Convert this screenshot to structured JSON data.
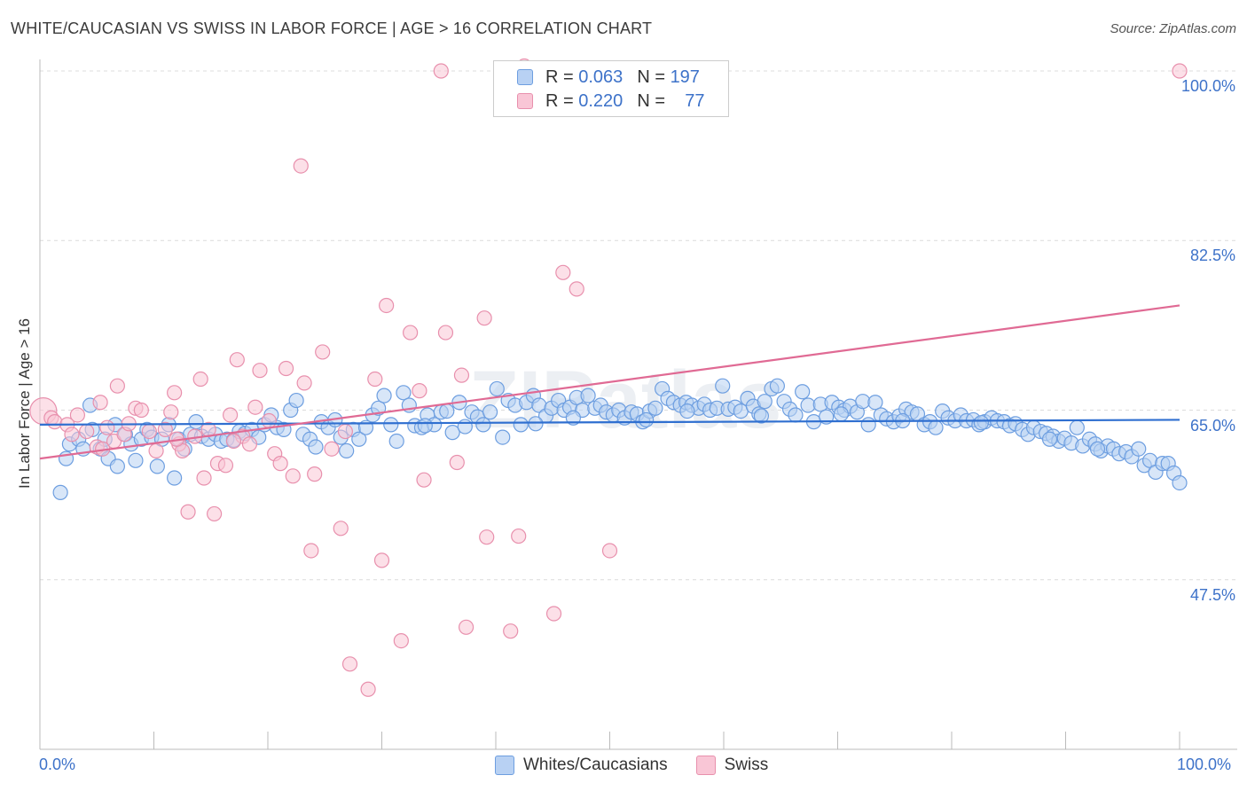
{
  "title": "WHITE/CAUCASIAN VS SWISS IN LABOR FORCE | AGE > 16 CORRELATION CHART",
  "source": "Source: ZipAtlas.com",
  "watermark": "ZIPatlas",
  "legend": {
    "rows": [
      {
        "r_label": "R =",
        "r_value": "0.063",
        "n_label": "N =",
        "n_value": "197"
      },
      {
        "r_label": "R =",
        "r_value": "0.220",
        "n_label": "N =",
        "n_value": "77"
      }
    ],
    "bottom": [
      "Whites/Caucasians",
      "Swiss"
    ]
  },
  "colors": {
    "blue_fill": "#b8d1f3",
    "blue_stroke": "#6d9ee0",
    "blue_line": "#2f6fd0",
    "pink_fill": "#f9c6d6",
    "pink_stroke": "#e890ad",
    "pink_line": "#e06a94",
    "accent_text": "#3d72c9"
  },
  "chart_data": {
    "type": "scatter",
    "title": "WHITE/CAUCASIAN VS SWISS IN LABOR FORCE | AGE > 16 CORRELATION CHART",
    "xlabel": "",
    "ylabel": "In Labor Force | Age > 16",
    "xlim": [
      0,
      100
    ],
    "ylim": [
      30,
      100
    ],
    "x_tick_labels": [
      "0.0%",
      "100.0%"
    ],
    "y_ticks": [
      47.5,
      65.0,
      82.5,
      100.0
    ],
    "y_tick_labels": [
      "47.5%",
      "65.0%",
      "82.5%",
      "100.0%"
    ],
    "grid": true,
    "legend_position": "top-center",
    "series": [
      {
        "name": "Whites/Caucasians",
        "trend": {
          "x": [
            0,
            100
          ],
          "y": [
            63.5,
            64.0
          ]
        },
        "points": [
          [
            1.8,
            56.5
          ],
          [
            2.3,
            60.0
          ],
          [
            2.6,
            61.5
          ],
          [
            3.4,
            62.0
          ],
          [
            3.8,
            61.0
          ],
          [
            4.4,
            65.5
          ],
          [
            4.6,
            63.0
          ],
          [
            5.3,
            61.0
          ],
          [
            5.7,
            62.0
          ],
          [
            6.0,
            60.0
          ],
          [
            6.6,
            63.5
          ],
          [
            6.8,
            59.2
          ],
          [
            7.5,
            62.5
          ],
          [
            8.0,
            61.5
          ],
          [
            8.4,
            59.8
          ],
          [
            8.9,
            62.0
          ],
          [
            9.4,
            63.0
          ],
          [
            9.8,
            62.2
          ],
          [
            10.3,
            59.2
          ],
          [
            10.7,
            62.0
          ],
          [
            11.3,
            63.5
          ],
          [
            11.8,
            58.0
          ],
          [
            12.2,
            62.0
          ],
          [
            12.7,
            61.0
          ],
          [
            13.2,
            62.5
          ],
          [
            13.7,
            63.8
          ],
          [
            14.2,
            62.3
          ],
          [
            14.8,
            62.0
          ],
          [
            15.4,
            62.5
          ],
          [
            15.9,
            61.8
          ],
          [
            16.4,
            62.0
          ],
          [
            17.0,
            61.9
          ],
          [
            17.5,
            62.8
          ],
          [
            18.0,
            62.6
          ],
          [
            18.6,
            63.0
          ],
          [
            19.2,
            62.2
          ],
          [
            19.7,
            63.5
          ],
          [
            20.3,
            64.5
          ],
          [
            20.8,
            63.2
          ],
          [
            21.4,
            63.0
          ],
          [
            22.0,
            65.0
          ],
          [
            22.5,
            66.0
          ],
          [
            23.1,
            62.5
          ],
          [
            23.7,
            62.0
          ],
          [
            24.2,
            61.2
          ],
          [
            24.7,
            63.8
          ],
          [
            25.3,
            63.2
          ],
          [
            25.9,
            64.0
          ],
          [
            26.4,
            62.2
          ],
          [
            26.9,
            60.8
          ],
          [
            27.5,
            63.0
          ],
          [
            28.0,
            62.0
          ],
          [
            28.6,
            63.2
          ],
          [
            29.2,
            64.5
          ],
          [
            29.7,
            65.2
          ],
          [
            30.2,
            66.5
          ],
          [
            30.8,
            63.5
          ],
          [
            31.3,
            61.8
          ],
          [
            31.9,
            66.8
          ],
          [
            32.4,
            65.5
          ],
          [
            32.9,
            63.4
          ],
          [
            33.5,
            63.2
          ],
          [
            34.0,
            64.5
          ],
          [
            34.6,
            63.5
          ],
          [
            35.2,
            64.8
          ],
          [
            35.7,
            64.9
          ],
          [
            36.2,
            62.7
          ],
          [
            36.8,
            65.8
          ],
          [
            37.3,
            63.3
          ],
          [
            37.9,
            64.8
          ],
          [
            38.4,
            64.3
          ],
          [
            38.9,
            63.5
          ],
          [
            39.5,
            64.8
          ],
          [
            40.1,
            67.2
          ],
          [
            40.6,
            62.2
          ],
          [
            41.1,
            66.0
          ],
          [
            41.7,
            65.5
          ],
          [
            42.2,
            63.5
          ],
          [
            42.7,
            65.8
          ],
          [
            43.3,
            66.5
          ],
          [
            43.8,
            65.5
          ],
          [
            44.4,
            64.4
          ],
          [
            44.9,
            65.2
          ],
          [
            45.5,
            66.0
          ],
          [
            46.0,
            65.0
          ],
          [
            46.5,
            65.3
          ],
          [
            47.1,
            66.3
          ],
          [
            47.6,
            65.0
          ],
          [
            48.1,
            66.5
          ],
          [
            48.7,
            65.2
          ],
          [
            49.2,
            65.5
          ],
          [
            49.7,
            64.8
          ],
          [
            50.3,
            64.5
          ],
          [
            50.8,
            65.0
          ],
          [
            51.3,
            64.2
          ],
          [
            51.9,
            64.8
          ],
          [
            52.4,
            64.6
          ],
          [
            52.9,
            63.8
          ],
          [
            53.5,
            64.9
          ],
          [
            54.0,
            65.2
          ],
          [
            54.6,
            67.2
          ],
          [
            55.1,
            66.2
          ],
          [
            55.6,
            65.8
          ],
          [
            56.2,
            65.5
          ],
          [
            56.7,
            65.8
          ],
          [
            57.2,
            65.5
          ],
          [
            57.8,
            65.2
          ],
          [
            58.3,
            65.6
          ],
          [
            58.8,
            65.0
          ],
          [
            59.4,
            65.2
          ],
          [
            59.9,
            67.5
          ],
          [
            60.4,
            65.1
          ],
          [
            61.0,
            65.3
          ],
          [
            61.5,
            64.9
          ],
          [
            62.1,
            66.2
          ],
          [
            62.6,
            65.4
          ],
          [
            63.1,
            64.6
          ],
          [
            63.6,
            65.9
          ],
          [
            64.2,
            67.2
          ],
          [
            64.7,
            67.5
          ],
          [
            65.3,
            65.9
          ],
          [
            65.8,
            65.1
          ],
          [
            66.3,
            64.5
          ],
          [
            66.9,
            66.9
          ],
          [
            67.4,
            65.5
          ],
          [
            67.9,
            63.8
          ],
          [
            68.5,
            65.6
          ],
          [
            69.0,
            64.3
          ],
          [
            69.5,
            65.8
          ],
          [
            70.1,
            65.3
          ],
          [
            70.6,
            65.0
          ],
          [
            71.1,
            65.4
          ],
          [
            71.7,
            64.8
          ],
          [
            72.2,
            65.9
          ],
          [
            72.7,
            63.5
          ],
          [
            73.3,
            65.8
          ],
          [
            73.8,
            64.5
          ],
          [
            74.3,
            64.1
          ],
          [
            74.9,
            63.8
          ],
          [
            75.4,
            64.4
          ],
          [
            76.0,
            65.1
          ],
          [
            76.5,
            64.8
          ],
          [
            77.0,
            64.6
          ],
          [
            77.6,
            63.5
          ],
          [
            78.1,
            63.8
          ],
          [
            78.6,
            63.2
          ],
          [
            79.2,
            64.9
          ],
          [
            79.7,
            64.2
          ],
          [
            80.3,
            63.9
          ],
          [
            80.8,
            64.5
          ],
          [
            81.3,
            63.9
          ],
          [
            81.9,
            64.0
          ],
          [
            82.4,
            63.5
          ],
          [
            82.9,
            63.8
          ],
          [
            83.5,
            64.2
          ],
          [
            84.0,
            63.9
          ],
          [
            84.6,
            63.8
          ],
          [
            85.1,
            63.4
          ],
          [
            85.6,
            63.6
          ],
          [
            86.2,
            63.0
          ],
          [
            86.7,
            62.5
          ],
          [
            87.2,
            63.2
          ],
          [
            87.8,
            62.8
          ],
          [
            88.3,
            62.6
          ],
          [
            88.9,
            62.3
          ],
          [
            89.4,
            61.8
          ],
          [
            89.9,
            62.1
          ],
          [
            90.5,
            61.6
          ],
          [
            91.0,
            63.2
          ],
          [
            91.5,
            61.3
          ],
          [
            92.1,
            62.0
          ],
          [
            92.6,
            61.5
          ],
          [
            93.1,
            60.8
          ],
          [
            93.7,
            61.3
          ],
          [
            94.2,
            61.0
          ],
          [
            94.7,
            60.5
          ],
          [
            95.3,
            60.7
          ],
          [
            95.8,
            60.2
          ],
          [
            96.4,
            61.0
          ],
          [
            96.9,
            59.3
          ],
          [
            97.4,
            59.8
          ],
          [
            97.9,
            58.6
          ],
          [
            98.5,
            59.5
          ],
          [
            99.0,
            59.5
          ],
          [
            99.5,
            58.5
          ],
          [
            100.0,
            57.5
          ],
          [
            43.5,
            63.6
          ],
          [
            46.8,
            64.2
          ],
          [
            53.2,
            64.0
          ],
          [
            56.8,
            64.9
          ],
          [
            63.3,
            64.4
          ],
          [
            70.3,
            64.6
          ],
          [
            75.7,
            63.9
          ],
          [
            82.6,
            63.7
          ],
          [
            88.6,
            62.0
          ],
          [
            92.8,
            61.0
          ],
          [
            33.8,
            63.4
          ]
        ]
      },
      {
        "name": "Swiss",
        "trend": {
          "x": [
            0,
            100
          ],
          "y": [
            60.0,
            75.8
          ]
        },
        "points": [
          [
            0.3,
            64.9
          ],
          [
            1.0,
            64.2
          ],
          [
            1.3,
            63.8
          ],
          [
            2.4,
            63.5
          ],
          [
            2.8,
            62.5
          ],
          [
            3.3,
            64.5
          ],
          [
            4.1,
            62.8
          ],
          [
            5.0,
            61.2
          ],
          [
            5.3,
            65.8
          ],
          [
            5.9,
            63.2
          ],
          [
            6.5,
            61.8
          ],
          [
            6.8,
            67.5
          ],
          [
            7.4,
            62.5
          ],
          [
            7.8,
            63.6
          ],
          [
            8.4,
            65.2
          ],
          [
            8.9,
            65.0
          ],
          [
            9.6,
            62.8
          ],
          [
            10.2,
            60.8
          ],
          [
            11.0,
            63.0
          ],
          [
            11.5,
            64.8
          ],
          [
            11.8,
            66.8
          ],
          [
            12.2,
            61.5
          ],
          [
            12.5,
            60.8
          ],
          [
            13.0,
            54.5
          ],
          [
            13.6,
            62.3
          ],
          [
            14.1,
            68.2
          ],
          [
            14.4,
            58.0
          ],
          [
            14.8,
            63.0
          ],
          [
            15.3,
            54.3
          ],
          [
            15.6,
            59.5
          ],
          [
            16.3,
            59.3
          ],
          [
            16.7,
            64.5
          ],
          [
            17.3,
            70.2
          ],
          [
            17.8,
            62.3
          ],
          [
            18.4,
            61.5
          ],
          [
            18.9,
            65.3
          ],
          [
            19.3,
            69.1
          ],
          [
            20.1,
            63.9
          ],
          [
            20.6,
            60.5
          ],
          [
            21.1,
            59.5
          ],
          [
            21.6,
            69.3
          ],
          [
            22.2,
            58.2
          ],
          [
            22.9,
            90.2
          ],
          [
            23.2,
            67.8
          ],
          [
            24.1,
            58.4
          ],
          [
            24.8,
            71.0
          ],
          [
            25.6,
            61.0
          ],
          [
            26.4,
            52.8
          ],
          [
            26.8,
            62.8
          ],
          [
            27.2,
            38.8
          ],
          [
            28.8,
            36.2
          ],
          [
            29.4,
            68.2
          ],
          [
            30.4,
            75.8
          ],
          [
            31.7,
            41.2
          ],
          [
            32.5,
            73.0
          ],
          [
            33.3,
            67.0
          ],
          [
            33.7,
            57.8
          ],
          [
            35.2,
            100.0
          ],
          [
            35.6,
            73.0
          ],
          [
            36.6,
            59.6
          ],
          [
            37.0,
            68.6
          ],
          [
            37.4,
            42.6
          ],
          [
            39.0,
            74.5
          ],
          [
            39.2,
            51.9
          ],
          [
            41.3,
            42.2
          ],
          [
            42.0,
            52.0
          ],
          [
            42.5,
            100.5
          ],
          [
            45.1,
            44.0
          ],
          [
            45.9,
            79.2
          ],
          [
            47.1,
            77.5
          ],
          [
            50.0,
            50.5
          ],
          [
            100.0,
            100.0
          ],
          [
            5.5,
            61.0
          ],
          [
            17.0,
            61.8
          ],
          [
            23.8,
            50.5
          ],
          [
            30.0,
            49.5
          ],
          [
            12.0,
            62.0
          ]
        ]
      }
    ]
  }
}
